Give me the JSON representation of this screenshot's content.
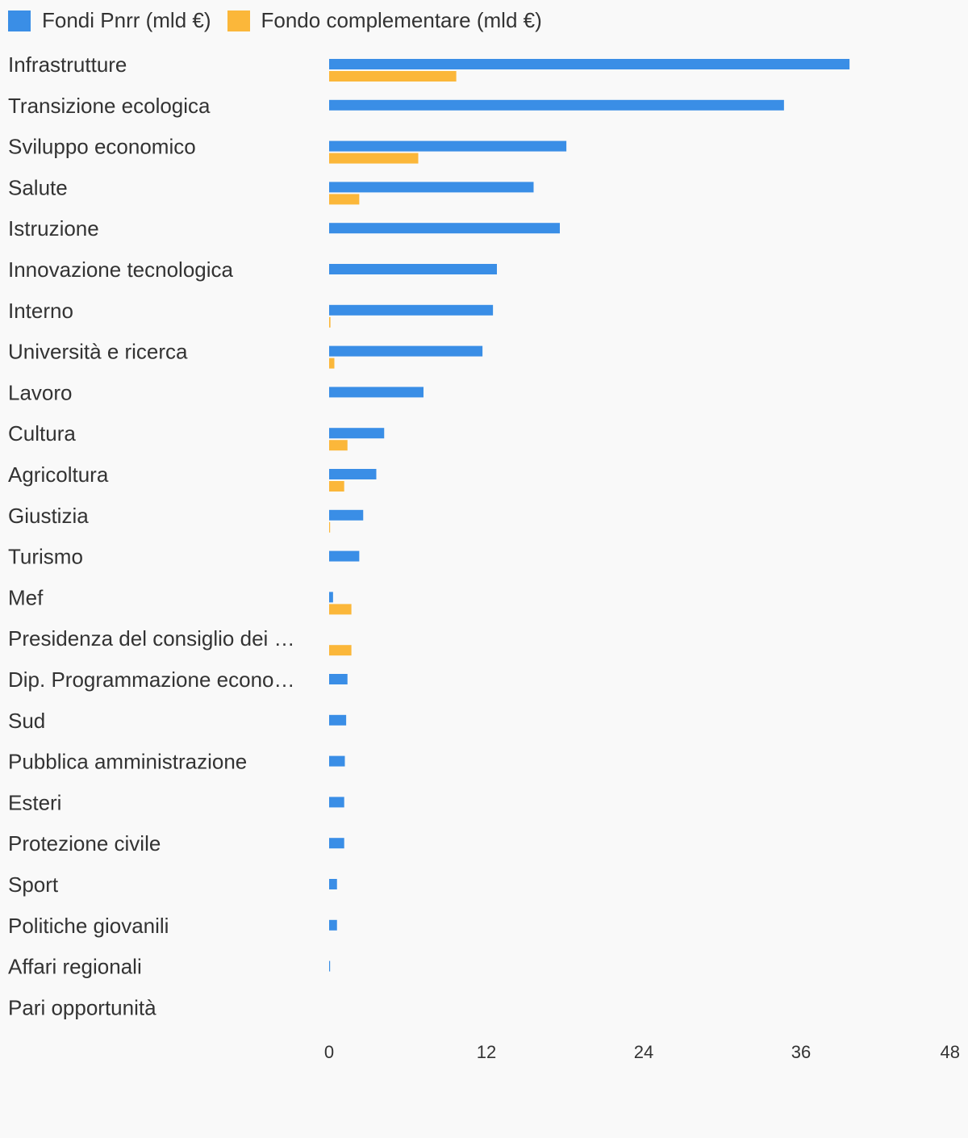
{
  "chart_data": {
    "type": "bar",
    "orientation": "horizontal",
    "categories": [
      "Infrastrutture",
      "Transizione ecologica",
      "Sviluppo economico",
      "Salute",
      "Istruzione",
      "Innovazione tecnologica",
      "Interno",
      "Università e ricerca",
      "Lavoro",
      "Cultura",
      "Agricoltura",
      "Giustizia",
      "Turismo",
      "Mef",
      "Presidenza del consiglio dei …",
      "Dip. Programmazione econo…",
      "Sud",
      "Pubblica amministrazione",
      "Esteri",
      "Protezione civile",
      "Sport",
      "Politiche giovanili",
      "Affari regionali",
      "Pari opportunità"
    ],
    "series": [
      {
        "name": "Fondi Pnrr (mld €)",
        "color": "#3a8ee6",
        "values": [
          39.7,
          34.7,
          18.1,
          15.6,
          17.6,
          12.8,
          12.5,
          11.7,
          7.2,
          4.2,
          3.6,
          2.6,
          2.3,
          0.3,
          0,
          1.4,
          1.3,
          1.2,
          1.15,
          1.15,
          0.6,
          0.6,
          0.05,
          0
        ]
      },
      {
        "name": "Fondo complementare (mld €)",
        "color": "#fbb73a",
        "values": [
          9.7,
          0,
          6.8,
          2.3,
          0,
          0,
          0.1,
          0.4,
          0,
          1.4,
          1.15,
          0.05,
          0,
          1.7,
          1.7,
          0,
          0,
          0,
          0,
          0,
          0,
          0,
          0,
          0
        ]
      }
    ],
    "xlim": [
      0,
      48
    ],
    "xticks": [
      0,
      12,
      24,
      36,
      48
    ],
    "legend_position": "top-left",
    "grid": false
  }
}
